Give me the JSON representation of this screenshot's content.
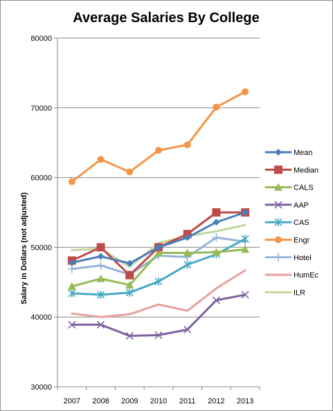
{
  "chart_data": {
    "type": "line",
    "title": "Average Salaries By College",
    "xlabel": "",
    "ylabel": "Salary in Dollars (not adjusted)",
    "categories": [
      "2007",
      "2008",
      "2009",
      "2010",
      "2011",
      "2012",
      "2013"
    ],
    "ylim": [
      30000,
      80000
    ],
    "yticks": [
      30000,
      40000,
      50000,
      60000,
      70000,
      80000
    ],
    "ytick_labels": [
      "30000",
      "40000",
      "50000",
      "60000",
      "70000",
      "80000"
    ],
    "grid": true,
    "legend": "right",
    "series": [
      {
        "name": "Mean",
        "color": "#4a7ebb",
        "marker": "diamond",
        "values": [
          47800,
          48700,
          47700,
          50000,
          51400,
          53600,
          55000
        ]
      },
      {
        "name": "Median",
        "color": "#be4b48",
        "marker": "square",
        "values": [
          48100,
          50000,
          46000,
          50000,
          51900,
          55000,
          55000
        ]
      },
      {
        "name": "CALS",
        "color": "#98b954",
        "marker": "triangle",
        "values": [
          44400,
          45500,
          44600,
          49200,
          49200,
          49300,
          49700
        ]
      },
      {
        "name": "AAP",
        "color": "#7d60a0",
        "marker": "x",
        "values": [
          38900,
          38900,
          37300,
          37400,
          38200,
          42400,
          43200
        ]
      },
      {
        "name": "CAS",
        "color": "#46aac5",
        "marker": "star",
        "values": [
          43400,
          43200,
          43500,
          45100,
          47500,
          49000,
          51200
        ]
      },
      {
        "name": "Engr",
        "color": "#f69545",
        "marker": "circle",
        "values": [
          59400,
          62600,
          60800,
          63900,
          64700,
          70100,
          72300
        ]
      },
      {
        "name": "Hotel",
        "color": "#95b3d7",
        "marker": "plus",
        "values": [
          46900,
          47400,
          46100,
          48800,
          48600,
          51400,
          50800
        ]
      },
      {
        "name": "HumEc",
        "color": "#e6a09e",
        "marker": "none",
        "values": [
          40500,
          40000,
          40400,
          41800,
          40900,
          44100,
          46700
        ]
      },
      {
        "name": "ILR",
        "color": "#c3d69b",
        "marker": "none",
        "values": [
          49600,
          49800,
          47200,
          50600,
          51600,
          52300,
          53200
        ]
      }
    ]
  }
}
